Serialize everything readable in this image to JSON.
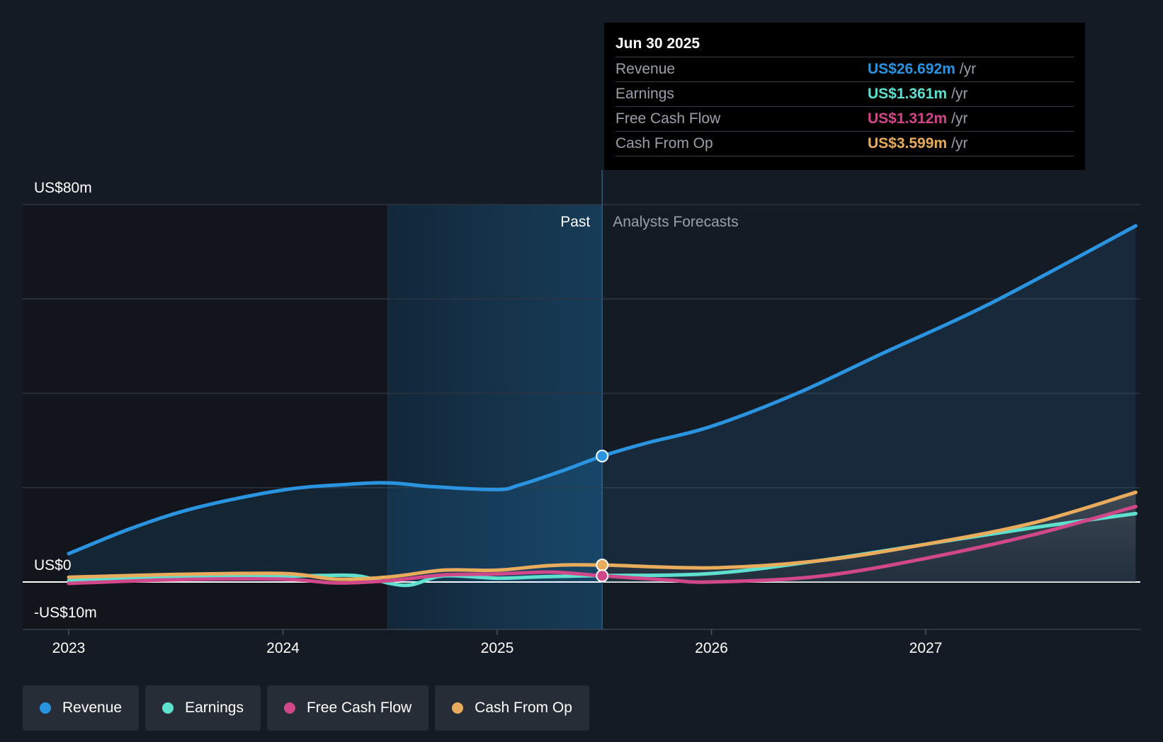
{
  "tooltip": {
    "date": "Jun 30 2025",
    "rows": [
      {
        "label": "Revenue",
        "value": "US$26.692m",
        "unit": "/yr",
        "color": "#2b94e1"
      },
      {
        "label": "Earnings",
        "value": "US$1.361m",
        "unit": "/yr",
        "color": "#5fe0cf"
      },
      {
        "label": "Free Cash Flow",
        "value": "US$1.312m",
        "unit": "/yr",
        "color": "#d0488a"
      },
      {
        "label": "Cash From Op",
        "value": "US$3.599m",
        "unit": "/yr",
        "color": "#e8ac5c"
      }
    ]
  },
  "legend": [
    {
      "label": "Revenue",
      "color": "#2b94e1"
    },
    {
      "label": "Earnings",
      "color": "#5fe0cf"
    },
    {
      "label": "Free Cash Flow",
      "color": "#d0488a"
    },
    {
      "label": "Cash From Op",
      "color": "#e8ac5c"
    }
  ],
  "chart_data": {
    "type": "line",
    "title": "",
    "xlabel": "",
    "ylabel": "",
    "x_ticks": [
      "2023",
      "2024",
      "2025",
      "2026",
      "2027"
    ],
    "y_tick_labels": [
      "US$80m",
      "US$0",
      "-US$10m"
    ],
    "ylim": [
      -10,
      80
    ],
    "xlim": [
      2022.79,
      2027.98
    ],
    "grid": true,
    "past_label": "Past",
    "forecast_label": "Analysts Forecasts",
    "divider_x": 2025.49,
    "highlight_start_x": 2024.49,
    "series": [
      {
        "name": "Revenue",
        "color": "#2b94e1",
        "points": [
          [
            2023.0,
            6
          ],
          [
            2023.3,
            11.5
          ],
          [
            2023.6,
            15.8
          ],
          [
            2024.0,
            19.5
          ],
          [
            2024.3,
            20.7
          ],
          [
            2024.5,
            21
          ],
          [
            2024.7,
            20.2
          ],
          [
            2025.0,
            19.6
          ],
          [
            2025.1,
            20.5
          ],
          [
            2025.3,
            23.5
          ],
          [
            2025.49,
            26.692
          ],
          [
            2025.7,
            29.5
          ],
          [
            2026.0,
            33
          ],
          [
            2026.4,
            40
          ],
          [
            2026.8,
            48.5
          ],
          [
            2027.3,
            59
          ],
          [
            2027.98,
            75.5
          ]
        ]
      },
      {
        "name": "Earnings",
        "color": "#5fe0cf",
        "points": [
          [
            2023.0,
            0.3
          ],
          [
            2023.5,
            0.9
          ],
          [
            2024.0,
            1.2
          ],
          [
            2024.2,
            1.4
          ],
          [
            2024.35,
            1.3
          ],
          [
            2024.5,
            -0.3
          ],
          [
            2024.6,
            -0.6
          ],
          [
            2024.75,
            1.3
          ],
          [
            2025.0,
            0.8
          ],
          [
            2025.2,
            1.1
          ],
          [
            2025.49,
            1.361
          ],
          [
            2026.0,
            1.8
          ],
          [
            2026.5,
            4.5
          ],
          [
            2027.0,
            8
          ],
          [
            2027.5,
            11.5
          ],
          [
            2027.98,
            14.5
          ]
        ]
      },
      {
        "name": "Free Cash Flow",
        "color": "#d0488a",
        "points": [
          [
            2023.0,
            -0.3
          ],
          [
            2023.5,
            0.5
          ],
          [
            2024.0,
            0.6
          ],
          [
            2024.25,
            -0.2
          ],
          [
            2024.5,
            0.3
          ],
          [
            2024.75,
            1.5
          ],
          [
            2025.0,
            1.7
          ],
          [
            2025.25,
            2.1
          ],
          [
            2025.49,
            1.312
          ],
          [
            2025.8,
            0.4
          ],
          [
            2026.0,
            0
          ],
          [
            2026.5,
            1.2
          ],
          [
            2027.0,
            5
          ],
          [
            2027.5,
            10
          ],
          [
            2027.98,
            16
          ]
        ]
      },
      {
        "name": "Cash From Op",
        "color": "#e8ac5c",
        "points": [
          [
            2023.0,
            1
          ],
          [
            2023.5,
            1.6
          ],
          [
            2024.0,
            1.8
          ],
          [
            2024.25,
            0.6
          ],
          [
            2024.5,
            1.1
          ],
          [
            2024.75,
            2.5
          ],
          [
            2025.0,
            2.5
          ],
          [
            2025.25,
            3.5
          ],
          [
            2025.49,
            3.599
          ],
          [
            2026.0,
            3
          ],
          [
            2026.5,
            4.5
          ],
          [
            2027.0,
            8
          ],
          [
            2027.5,
            12.5
          ],
          [
            2027.98,
            19
          ]
        ]
      }
    ]
  }
}
